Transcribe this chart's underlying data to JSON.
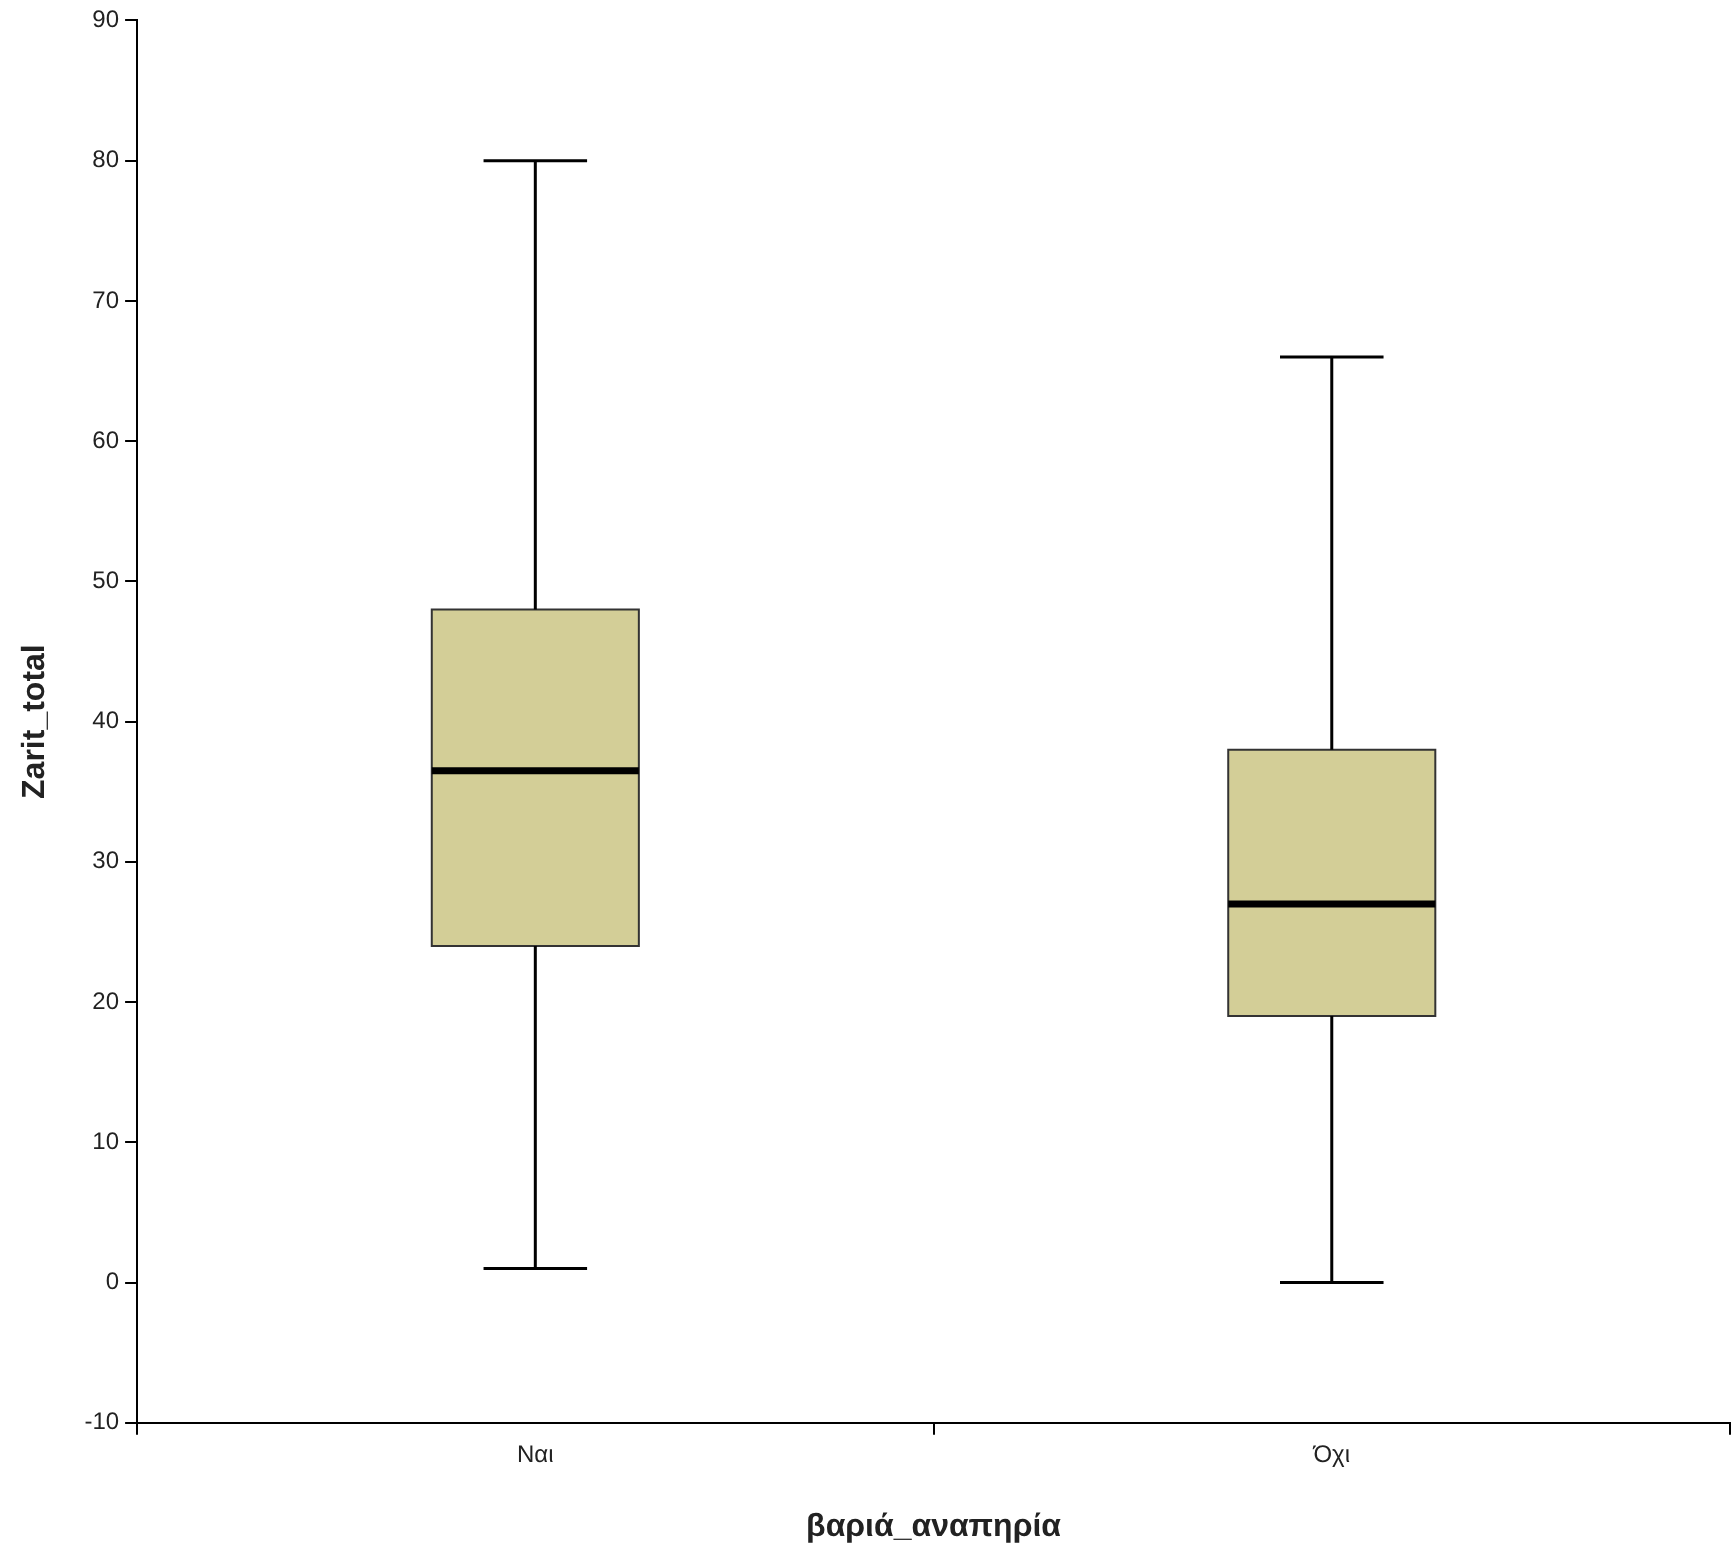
{
  "chart_data": {
    "type": "box",
    "xlabel": "βαριά_αναπηρία",
    "ylabel": "Zarit_total",
    "categories": [
      "Ναι",
      "Όχι"
    ],
    "boxes": [
      {
        "low": 1,
        "q1": 24,
        "median": 36.5,
        "q3": 48,
        "high": 80
      },
      {
        "low": 0,
        "q1": 19,
        "median": 27,
        "q3": 38,
        "high": 66
      }
    ],
    "color": "#d3ce97",
    "ylim": [
      -10,
      90
    ],
    "yticks": [
      -10,
      0,
      10,
      20,
      30,
      40,
      50,
      60,
      70,
      80,
      90
    ]
  }
}
